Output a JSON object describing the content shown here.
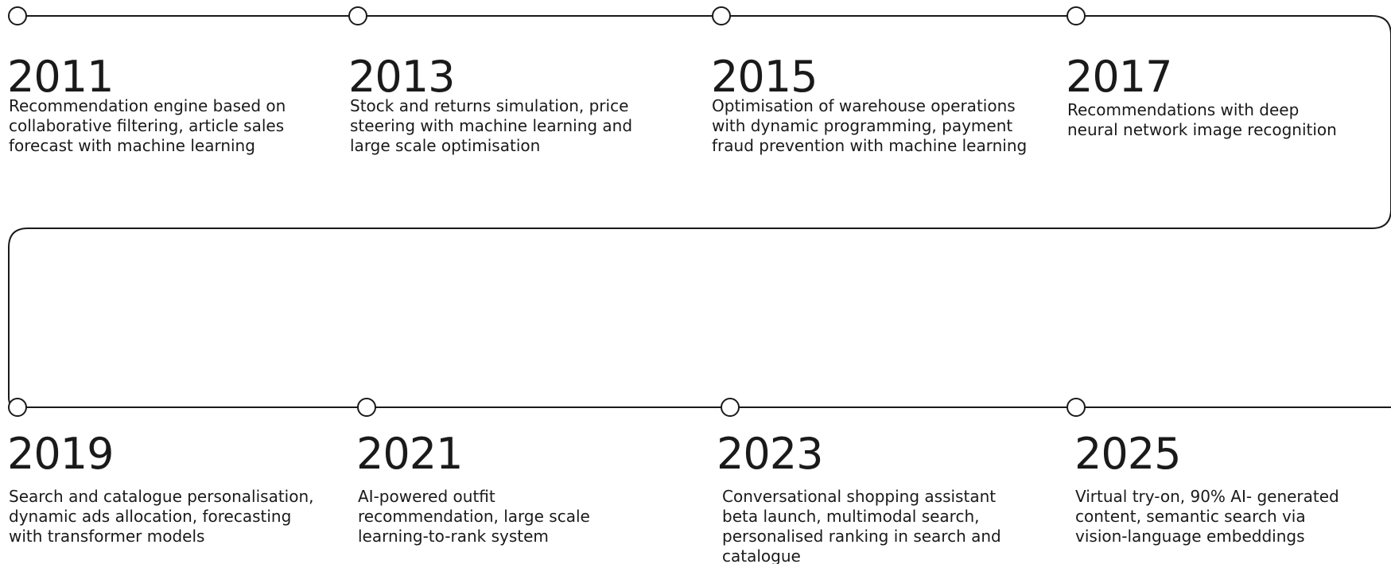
{
  "timeline": {
    "items": [
      {
        "year": "2011",
        "lines": [
          "Recommendation engine based on",
          "collaborative filtering, article sales",
          "forecast with machine learning"
        ]
      },
      {
        "year": "2013",
        "lines": [
          "Stock and returns simulation, price",
          "steering with machine learning and",
          "large scale optimisation"
        ]
      },
      {
        "year": "2015",
        "lines": [
          "Optimisation of warehouse operations",
          "with dynamic programming, payment",
          "fraud prevention with machine learning"
        ]
      },
      {
        "year": "2017",
        "lines": [
          "Recommendations with deep",
          "neural network image recognition"
        ]
      },
      {
        "year": "2019",
        "lines": [
          "Search and catalogue personalisation,",
          "dynamic ads allocation, forecasting",
          "with transformer models"
        ]
      },
      {
        "year": "2021",
        "lines": [
          "AI-powered outfit",
          "recommendation, large scale",
          "learning-to-rank system"
        ]
      },
      {
        "year": "2023",
        "lines": [
          "Conversational shopping assistant",
          "beta launch, multimodal search,",
          "personalised ranking in search and",
          "catalogue"
        ]
      },
      {
        "year": "2025",
        "lines": [
          "Virtual try-on, 90% AI- generated",
          "content, semantic search via",
          "vision-language embeddings"
        ]
      }
    ]
  }
}
